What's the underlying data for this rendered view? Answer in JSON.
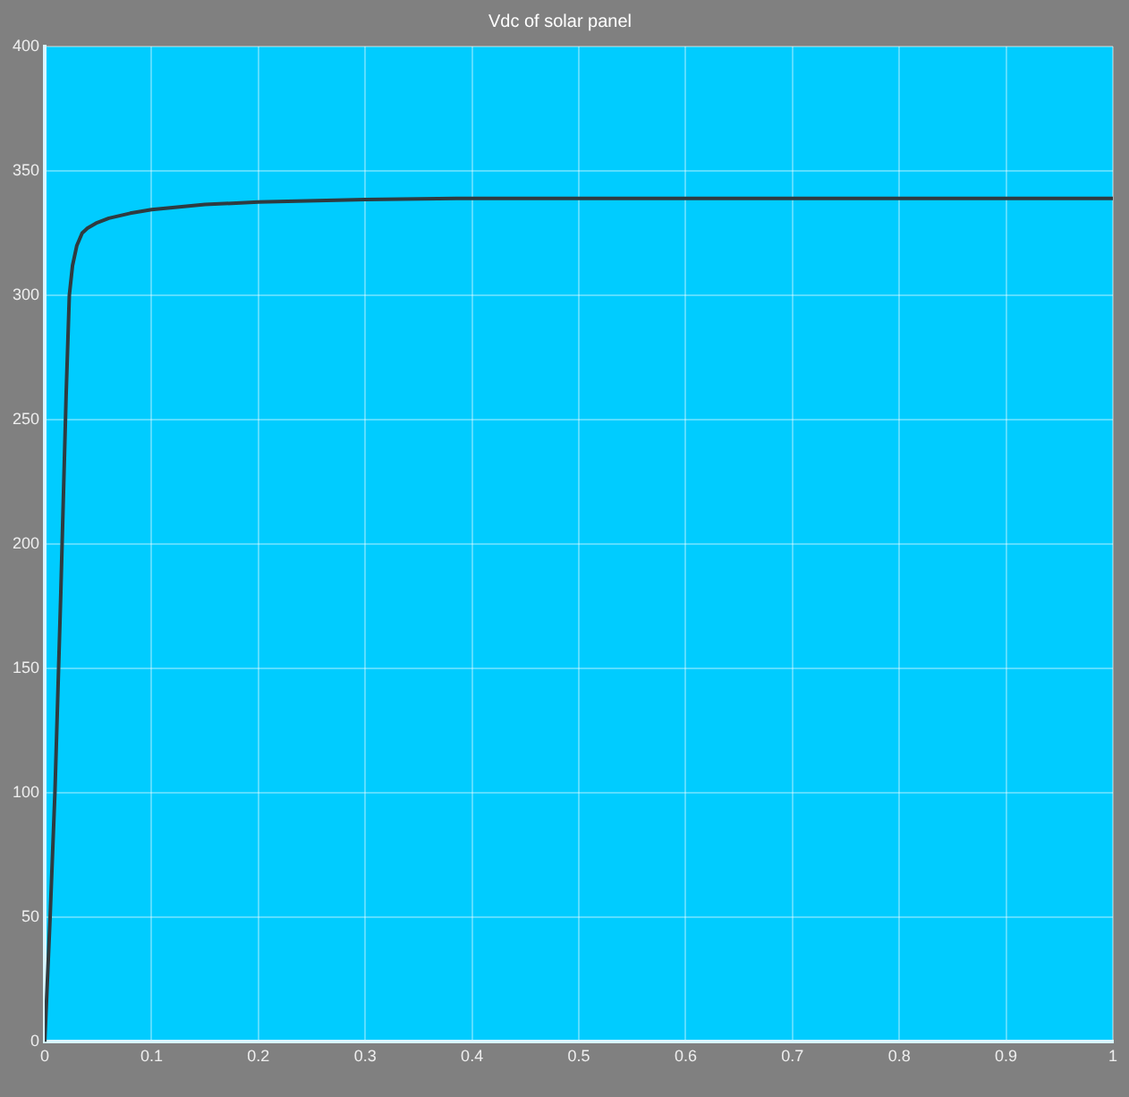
{
  "chart_data": {
    "type": "line",
    "title": "Vdc of solar panel",
    "x": [
      0,
      0.005,
      0.0095,
      0.015,
      0.02,
      0.023,
      0.026,
      0.03,
      0.035,
      0.04,
      0.048,
      0.06,
      0.08,
      0.1,
      0.15,
      0.2,
      0.3,
      0.4,
      0.5,
      0.6,
      0.7,
      0.8,
      0.9,
      1
    ],
    "series": [
      {
        "color": "#2f3b40",
        "values": [
          0,
          50,
          100,
          180,
          260,
          300,
          312,
          320,
          325,
          327,
          329,
          331,
          333,
          334.5,
          336.5,
          337.5,
          338.5,
          339,
          339,
          339,
          339,
          339,
          339,
          339
        ]
      }
    ],
    "xlim": [
      0,
      1
    ],
    "xticks": [
      0,
      0.1,
      0.2,
      0.3,
      0.4,
      0.5,
      0.6,
      0.7,
      0.8,
      0.9,
      1
    ],
    "ylim": [
      0,
      400
    ],
    "yticks": [
      0,
      50,
      100,
      150,
      200,
      250,
      300,
      350,
      400
    ],
    "grid": true,
    "marker": "none",
    "line_style": "solid"
  }
}
